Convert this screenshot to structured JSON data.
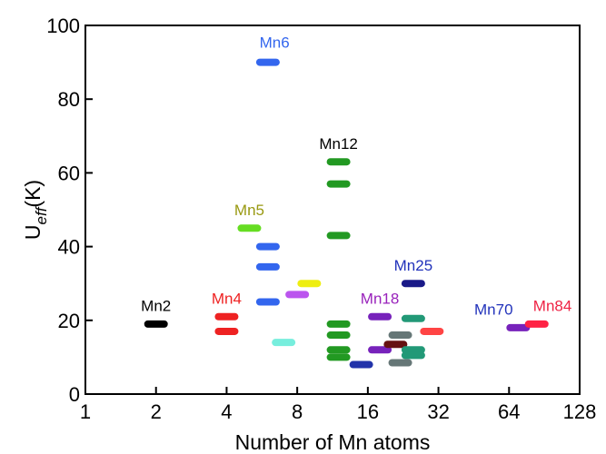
{
  "chart_data": {
    "type": "scatter",
    "title": "",
    "xlabel": "Number of Mn atoms",
    "ylabel": {
      "base": "U",
      "sub": "eff",
      "unit": "(K)"
    },
    "xscale": "log2",
    "xlim": [
      1,
      128
    ],
    "ylim": [
      0,
      100
    ],
    "xticks": [
      1,
      2,
      4,
      8,
      16,
      32,
      64,
      128
    ],
    "xtick_labels": [
      "1",
      "2",
      "4",
      "8",
      "16",
      "32",
      "64",
      "128"
    ],
    "yticks": [
      0,
      20,
      40,
      60,
      80,
      100
    ],
    "ytick_labels": [
      "0",
      "20",
      "40",
      "60",
      "80",
      "100"
    ],
    "grid": false,
    "legend": "none",
    "marker": "horizontal-bar",
    "points": [
      {
        "x": 2,
        "y": 19,
        "color": "#000000"
      },
      {
        "x": 4,
        "y": 21,
        "color": "#ee2222"
      },
      {
        "x": 4,
        "y": 17,
        "color": "#ee2222"
      },
      {
        "x": 5,
        "y": 45,
        "color": "#66dd22"
      },
      {
        "x": 6,
        "y": 90,
        "color": "#3366ee"
      },
      {
        "x": 6,
        "y": 40,
        "color": "#3366ee"
      },
      {
        "x": 6,
        "y": 34.5,
        "color": "#3366ee"
      },
      {
        "x": 6,
        "y": 25,
        "color": "#3366ee"
      },
      {
        "x": 7,
        "y": 14,
        "color": "#77eedd"
      },
      {
        "x": 8,
        "y": 27,
        "color": "#bb55ee"
      },
      {
        "x": 9,
        "y": 30,
        "color": "#eeee11"
      },
      {
        "x": 12,
        "y": 63,
        "color": "#229922"
      },
      {
        "x": 12,
        "y": 57,
        "color": "#229922"
      },
      {
        "x": 12,
        "y": 43,
        "color": "#229922"
      },
      {
        "x": 12,
        "y": 19,
        "color": "#229922"
      },
      {
        "x": 12,
        "y": 16,
        "color": "#229922"
      },
      {
        "x": 12,
        "y": 12,
        "color": "#229922"
      },
      {
        "x": 12,
        "y": 10,
        "color": "#229922"
      },
      {
        "x": 15,
        "y": 8,
        "color": "#2233aa"
      },
      {
        "x": 18,
        "y": 21,
        "color": "#7722bb"
      },
      {
        "x": 18,
        "y": 12,
        "color": "#7722bb"
      },
      {
        "x": 21,
        "y": 13.5,
        "color": "#661111"
      },
      {
        "x": 22,
        "y": 16,
        "color": "#667777"
      },
      {
        "x": 22,
        "y": 8.5,
        "color": "#667777"
      },
      {
        "x": 25,
        "y": 30,
        "color": "#1a1a88"
      },
      {
        "x": 25,
        "y": 20.5,
        "color": "#229977"
      },
      {
        "x": 25,
        "y": 12,
        "color": "#229977"
      },
      {
        "x": 25,
        "y": 10.5,
        "color": "#229977"
      },
      {
        "x": 30,
        "y": 17,
        "color": "#ff4444"
      },
      {
        "x": 70,
        "y": 18,
        "color": "#7722bb"
      },
      {
        "x": 84,
        "y": 19,
        "color": "#ff2244"
      }
    ],
    "annotations": [
      {
        "text": "Mn2",
        "x": 2,
        "y": 22.5,
        "color": "#000000"
      },
      {
        "text": "Mn4",
        "x": 4,
        "y": 24.5,
        "color": "#ee2222"
      },
      {
        "text": "Mn5",
        "x": 5,
        "y": 48.5,
        "color": "#999911"
      },
      {
        "text": "Mn6",
        "x": 6.4,
        "y": 94,
        "color": "#3366ee"
      },
      {
        "text": "Mn12",
        "x": 12,
        "y": 66.5,
        "color": "#000000"
      },
      {
        "text": "Mn18",
        "x": 18,
        "y": 24.5,
        "color": "#9922bb"
      },
      {
        "text": "Mn25",
        "x": 25,
        "y": 33.5,
        "color": "#2233bb"
      },
      {
        "text": "Mn70",
        "x": 55,
        "y": 21.5,
        "color": "#2233bb"
      },
      {
        "text": "Mn84",
        "x": 98,
        "y": 22.5,
        "color": "#ee2244"
      }
    ]
  }
}
